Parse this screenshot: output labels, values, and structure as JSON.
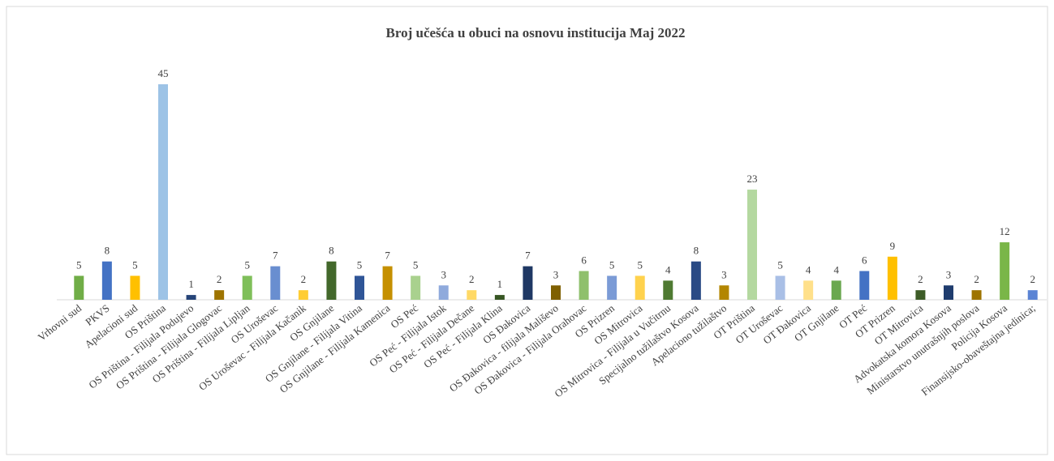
{
  "chart_data": {
    "type": "bar",
    "title": "Broj učešća u obuci na osnovu institucija   Maj 2022",
    "categories": [
      "Vrhovni sud",
      "PKVS",
      "Apelacioni sud",
      "OS Priština",
      "OS Priština - Filijala Podujevo",
      "OS Priština - Filijala Glogovac",
      "OS Priština - Filijala Lipljan",
      "OS Uroševac",
      "OS Uroševac - Filijala Kačanik",
      "OS Gnjilane",
      "OS Gnjilane - Filijala Vitina",
      "OS Gnjilane - Filijala Kamenica",
      "OS Peć",
      "OS Peć - Filijala Istok",
      "OS Peć - Filijala Dečane",
      "OS Peć - Filijala Klina",
      "OS Đakovica",
      "OS Đakovica - filijala Mališevo",
      "OS Đakovica - Filijala Orahovac",
      "OS Prizren",
      "OS Mitrovica",
      "OS Mitrovica - Filijala u Vučitrnu",
      "Specijalno tužilaštvo Kosova",
      "Apelaciono tužilaštvo",
      "OT Priština",
      "OT Uroševac",
      "OT Đakovica",
      "OT Gnjilane",
      "OT Peć",
      "OT Prizren",
      "OT Mitrovica",
      "Advokatska komora Kosova",
      "Ministarstvo unutrašnjih poslova",
      "Policija Kosova",
      "Finansijsko-obaveštajna jedinica;"
    ],
    "values": [
      5,
      8,
      5,
      45,
      1,
      2,
      5,
      7,
      2,
      8,
      5,
      7,
      5,
      3,
      2,
      1,
      7,
      3,
      6,
      5,
      5,
      4,
      8,
      3,
      23,
      5,
      4,
      4,
      6,
      9,
      2,
      3,
      2,
      12,
      2
    ],
    "colors": [
      "#70ad47",
      "#4472c4",
      "#ffc000",
      "#9dc3e6",
      "#264478",
      "#9e7400",
      "#7fbf5a",
      "#698ed0",
      "#ffcd33",
      "#43682b",
      "#2f5597",
      "#c59000",
      "#a9d18e",
      "#8faadc",
      "#ffd966",
      "#375623",
      "#1f3864",
      "#7f6000",
      "#8fc06c",
      "#7b9bd6",
      "#ffd24d",
      "#4f7a32",
      "#2a4a85",
      "#b38600",
      "#b4d8a0",
      "#a9bfe6",
      "#ffe08a",
      "#6aa84f",
      "#4472c4",
      "#ffc000",
      "#3d5c27",
      "#1f3c6e",
      "#9e7400",
      "#7ab648",
      "#5b84d4"
    ]
  }
}
